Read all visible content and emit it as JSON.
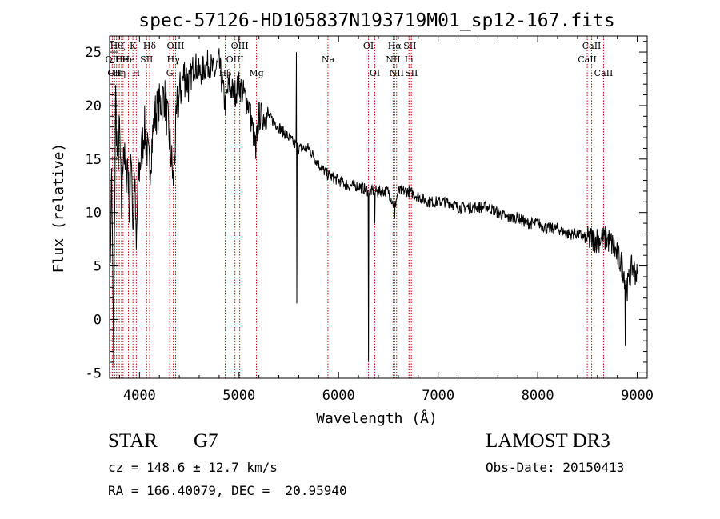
{
  "chart_data": {
    "type": "line",
    "title": "spec-57126-HD105837N193719M01_sp12-167.fits",
    "xlabel": "Wavelength (Å)",
    "ylabel": "Flux (relative)",
    "xlim": [
      3700,
      9100
    ],
    "ylim": [
      -5.5,
      26.5
    ],
    "xticks": [
      4000,
      5000,
      6000,
      7000,
      8000,
      9000
    ],
    "yticks": [
      -5,
      0,
      5,
      10,
      15,
      20,
      25
    ],
    "grid": false,
    "series": [
      {
        "name": "flux",
        "anchors": [
          [
            3700,
            1.0
          ],
          [
            3720,
            14.0
          ],
          [
            3740,
            -3.0
          ],
          [
            3760,
            21.0
          ],
          [
            3780,
            14.0
          ],
          [
            3800,
            18.0
          ],
          [
            3820,
            10.0
          ],
          [
            3840,
            17.0
          ],
          [
            3860,
            13.0
          ],
          [
            3880,
            15.0
          ],
          [
            3900,
            10.0
          ],
          [
            3920,
            16.0
          ],
          [
            3934,
            8.0
          ],
          [
            3950,
            14.0
          ],
          [
            3968,
            6.0
          ],
          [
            3985,
            13.0
          ],
          [
            4000,
            14.0
          ],
          [
            4050,
            18.0
          ],
          [
            4101,
            14.0
          ],
          [
            4150,
            19.0
          ],
          [
            4200,
            20.0
          ],
          [
            4250,
            21.0
          ],
          [
            4300,
            17.0
          ],
          [
            4340,
            13.0
          ],
          [
            4380,
            20.0
          ],
          [
            4450,
            23.0
          ],
          [
            4500,
            22.0
          ],
          [
            4550,
            24.0
          ],
          [
            4600,
            23.0
          ],
          [
            4650,
            23.5
          ],
          [
            4700,
            24.0
          ],
          [
            4750,
            23.0
          ],
          [
            4800,
            24.0
          ],
          [
            4861,
            20.0
          ],
          [
            4900,
            22.0
          ],
          [
            4950,
            21.0
          ],
          [
            5000,
            22.0
          ],
          [
            5100,
            20.0
          ],
          [
            5167,
            16.0
          ],
          [
            5200,
            19.0
          ],
          [
            5300,
            19.0
          ],
          [
            5400,
            18.0
          ],
          [
            5500,
            17.0
          ],
          [
            5600,
            16.0
          ],
          [
            5700,
            16.0
          ],
          [
            5800,
            14.5
          ],
          [
            5893,
            13.5
          ],
          [
            6000,
            13.0
          ],
          [
            6100,
            12.5
          ],
          [
            6200,
            12.5
          ],
          [
            6300,
            12.0
          ],
          [
            6400,
            12.0
          ],
          [
            6500,
            12.0
          ],
          [
            6563,
            10.5
          ],
          [
            6600,
            12.0
          ],
          [
            6700,
            12.0
          ],
          [
            6800,
            11.5
          ],
          [
            6900,
            11.0
          ],
          [
            7000,
            11.0
          ],
          [
            7100,
            11.0
          ],
          [
            7200,
            10.5
          ],
          [
            7300,
            10.5
          ],
          [
            7400,
            10.5
          ],
          [
            7500,
            10.5
          ],
          [
            7600,
            10.0
          ],
          [
            7700,
            9.5
          ],
          [
            7800,
            9.5
          ],
          [
            7900,
            9.0
          ],
          [
            8000,
            9.0
          ],
          [
            8100,
            8.5
          ],
          [
            8200,
            8.5
          ],
          [
            8300,
            8.0
          ],
          [
            8400,
            8.0
          ],
          [
            8500,
            7.5
          ],
          [
            8600,
            7.5
          ],
          [
            8700,
            7.5
          ],
          [
            8750,
            7.0
          ],
          [
            8800,
            6.0
          ],
          [
            8850,
            5.0
          ],
          [
            8900,
            3.0
          ],
          [
            8950,
            5.0
          ],
          [
            9000,
            4.0
          ]
        ],
        "spikes": [
          [
            3740,
            -4.5
          ],
          [
            4340,
            12.5
          ],
          [
            5167,
            15.0
          ],
          [
            5577,
            25.0
          ],
          [
            5580,
            1.5
          ],
          [
            6300,
            -4.0
          ],
          [
            6365,
            9.0
          ],
          [
            6563,
            9.5
          ],
          [
            7270,
            7.5
          ],
          [
            8880,
            -2.5
          ]
        ]
      }
    ],
    "lines": [
      {
        "wavelength": 3727,
        "label": "OII",
        "row": 1
      },
      {
        "wavelength": 3750,
        "label": "OII",
        "row": 2
      },
      {
        "wavelength": 3770,
        "label": "Hθ",
        "row": 0
      },
      {
        "wavelength": 3797,
        "label": "Hη",
        "row": 2
      },
      {
        "wavelength": 3820,
        "label": "He",
        "row": 1
      },
      {
        "wavelength": 3835,
        "label": "ζ",
        "row": 0
      },
      {
        "wavelength": 3889,
        "label": "He",
        "row": 1
      },
      {
        "wavelength": 3934,
        "label": "K",
        "row": 0
      },
      {
        "wavelength": 3968,
        "label": "H",
        "row": 2
      },
      {
        "wavelength": 4072,
        "label": "SII",
        "row": 1
      },
      {
        "wavelength": 4102,
        "label": "Hδ",
        "row": 0
      },
      {
        "wavelength": 4304,
        "label": "G",
        "row": 2
      },
      {
        "wavelength": 4340,
        "label": "Hγ",
        "row": 1
      },
      {
        "wavelength": 4363,
        "label": "OIII",
        "row": 0
      },
      {
        "wavelength": 4861,
        "label": "Hβ",
        "row": 2
      },
      {
        "wavelength": 4959,
        "label": "OIII",
        "row": 1
      },
      {
        "wavelength": 5007,
        "label": "OIII",
        "row": 0
      },
      {
        "wavelength": 5175,
        "label": "Mg",
        "row": 2
      },
      {
        "wavelength": 5893,
        "label": "Na",
        "row": 1
      },
      {
        "wavelength": 6300,
        "label": "OI",
        "row": 0
      },
      {
        "wavelength": 6364,
        "label": "OI",
        "row": 2
      },
      {
        "wavelength": 6548,
        "label": "NII",
        "row": 1
      },
      {
        "wavelength": 6563,
        "label": "Hα",
        "row": 0
      },
      {
        "wavelength": 6583,
        "label": "NII",
        "row": 2
      },
      {
        "wavelength": 6707,
        "label": "Li",
        "row": 1
      },
      {
        "wavelength": 6716,
        "label": "SII",
        "row": 0
      },
      {
        "wavelength": 6731,
        "label": "SII",
        "row": 2
      },
      {
        "wavelength": 8498,
        "label": "CaII",
        "row": 1
      },
      {
        "wavelength": 8542,
        "label": "CaII",
        "row": 0
      },
      {
        "wavelength": 8662,
        "label": "CaII",
        "row": 2
      }
    ],
    "colors": {
      "spectrum": "#000000",
      "lines": "#cc0000",
      "axes": "#000000",
      "background": "#ffffff"
    }
  },
  "info": {
    "class_label": "STAR",
    "subclass": "G7",
    "survey": "LAMOST DR3",
    "cz": "cz = 148.6 ± 12.7 km/s",
    "obs_date": "Obs-Date: 20150413",
    "radec": "RA = 166.40079, DEC =  20.95940"
  }
}
